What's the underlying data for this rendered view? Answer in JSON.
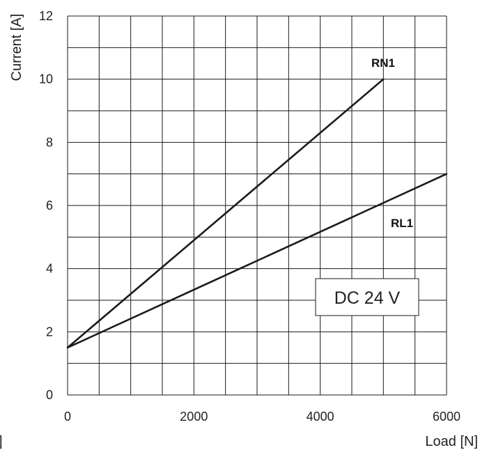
{
  "chart_data": {
    "type": "line",
    "title": "",
    "xlabel": "Load [N]",
    "ylabel": "Current [A]",
    "xlim": [
      0,
      6000
    ],
    "ylim": [
      0,
      12
    ],
    "x_ticks": [
      0,
      2000,
      4000,
      6000
    ],
    "x_tick_labels": [
      "0",
      "2000",
      "4000",
      "6000"
    ],
    "y_ticks": [
      0,
      2,
      4,
      6,
      8,
      10,
      12
    ],
    "y_tick_labels": [
      "0",
      "2",
      "4",
      "6",
      "8",
      "10",
      "12"
    ],
    "grid": true,
    "legend": "none",
    "series": [
      {
        "name": "RN1",
        "x": [
          0,
          5000
        ],
        "y": [
          1.5,
          10
        ]
      },
      {
        "name": "RL1",
        "x": [
          0,
          6000
        ],
        "y": [
          1.5,
          7
        ]
      }
    ],
    "annotation": "DC 24 V",
    "clipped_fragment": "]"
  },
  "colors": {
    "line": "#1a1a1a",
    "grid": "#1a1a1a",
    "background": "#ffffff"
  }
}
